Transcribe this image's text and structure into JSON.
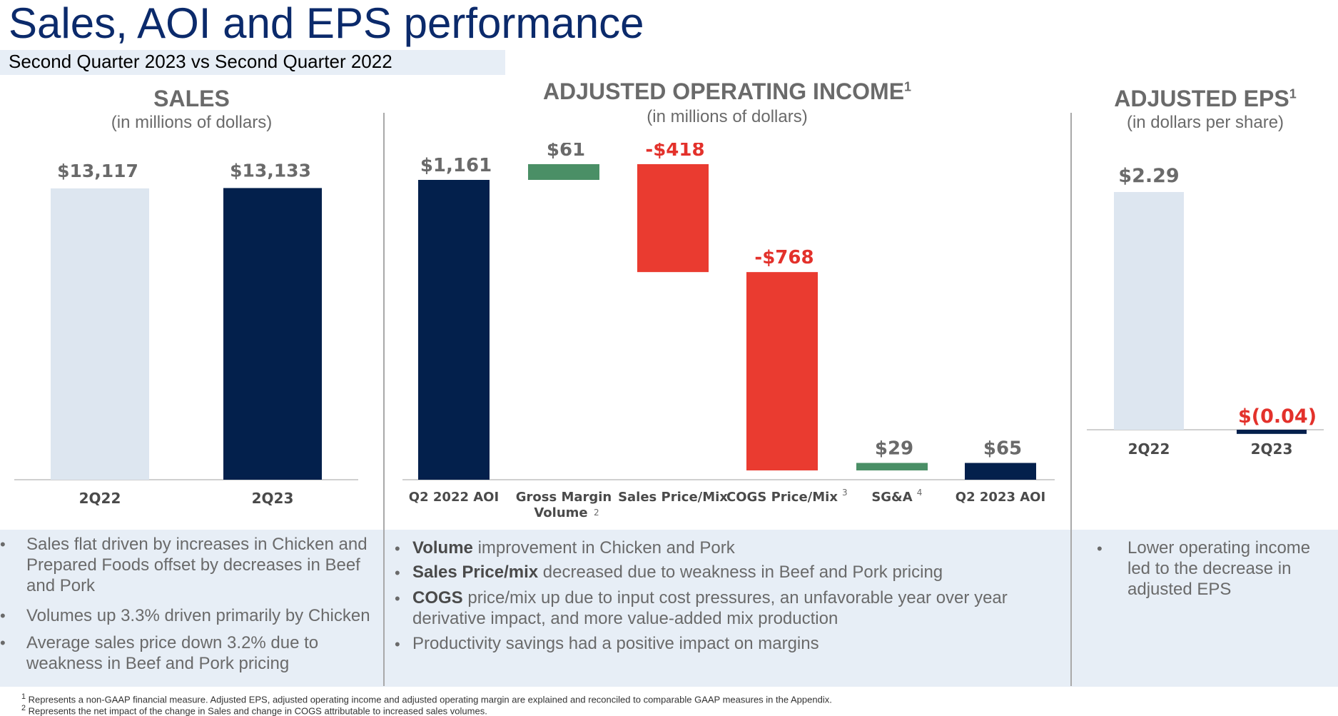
{
  "slide": {
    "title": "Sales, AOI and EPS performance",
    "subtitle": "Second Quarter 2023 vs Second Quarter 2022"
  },
  "panels": {
    "sales": {
      "title": "SALES",
      "unit": "(in millions of dollars)"
    },
    "aoi": {
      "title": "ADJUSTED OPERATING INCOME",
      "sup": "1",
      "unit": "(in millions of dollars)"
    },
    "eps": {
      "title": "ADJUSTED EPS",
      "sup": "1",
      "unit": "(in dollars per share)"
    }
  },
  "chart_data": [
    {
      "type": "bar",
      "categories": [
        "2Q22",
        "2Q23"
      ],
      "values": [
        13117,
        13133
      ],
      "labels": [
        "$13,117",
        "$13,133"
      ],
      "colors": [
        "#dde6f0",
        "#03204c"
      ],
      "ylim": [
        0,
        13500
      ]
    },
    {
      "type": "waterfall",
      "categories": [
        "Q2 2022 AOI",
        "Gross Margin Volume",
        "Sales Price/Mix",
        "COGS Price/Mix",
        "SG&A",
        "Q2 2023 AOI"
      ],
      "category_notes": [
        "",
        "2",
        "",
        "3",
        "4",
        ""
      ],
      "values": [
        1161,
        61,
        -418,
        -768,
        29,
        65
      ],
      "labels": [
        "$1,161",
        "$61",
        "-$418",
        "-$768",
        "$29",
        "$65"
      ],
      "kinds": [
        "total",
        "delta",
        "delta",
        "delta",
        "delta",
        "total"
      ],
      "colors": {
        "total": "#03204c",
        "positive": "#4a8f66",
        "negative": "#ea3b30",
        "negative_label": "#e3312b",
        "label": "#6a6a6a"
      },
      "ylim": [
        0,
        1300
      ]
    },
    {
      "type": "bar",
      "categories": [
        "2Q22",
        "2Q23"
      ],
      "values": [
        2.29,
        -0.04
      ],
      "labels": [
        "$2.29",
        "$(0.04)"
      ],
      "colors": [
        "#dde6f0",
        "#03204c"
      ],
      "label_colors": [
        "#6a6a6a",
        "#e3312b"
      ],
      "ylim": [
        0,
        2.45
      ]
    }
  ],
  "bullets": {
    "sales": [
      "Sales flat driven by increases in Chicken and Prepared Foods offset by decreases in Beef and Pork",
      "Volumes up 3.3% driven primarily by Chicken",
      "Average sales price down 3.2% due to weakness in Beef and Pork pricing"
    ],
    "aoi": [
      {
        "bold": "Volume",
        "rest": " improvement in Chicken and Pork"
      },
      {
        "bold": "Sales Price/mix",
        "rest": " decreased due to weakness in Beef and Pork pricing"
      },
      {
        "bold": "COGS",
        "rest": " price/mix up due to input cost pressures, an unfavorable year over year derivative impact, and more value-added mix production"
      },
      {
        "bold": "",
        "rest": "Productivity savings had a positive impact on margins"
      }
    ],
    "eps": [
      "Lower operating income led to the decrease in adjusted EPS"
    ]
  },
  "footnotes": [
    {
      "num": "1",
      "text": "Represents a non-GAAP financial measure. Adjusted EPS, adjusted operating income and adjusted operating margin are explained and reconciled to comparable GAAP measures in the Appendix."
    },
    {
      "num": "2",
      "text": "Represents the net impact of the change in Sales and change in COGS attributable to increased sales volumes."
    }
  ]
}
